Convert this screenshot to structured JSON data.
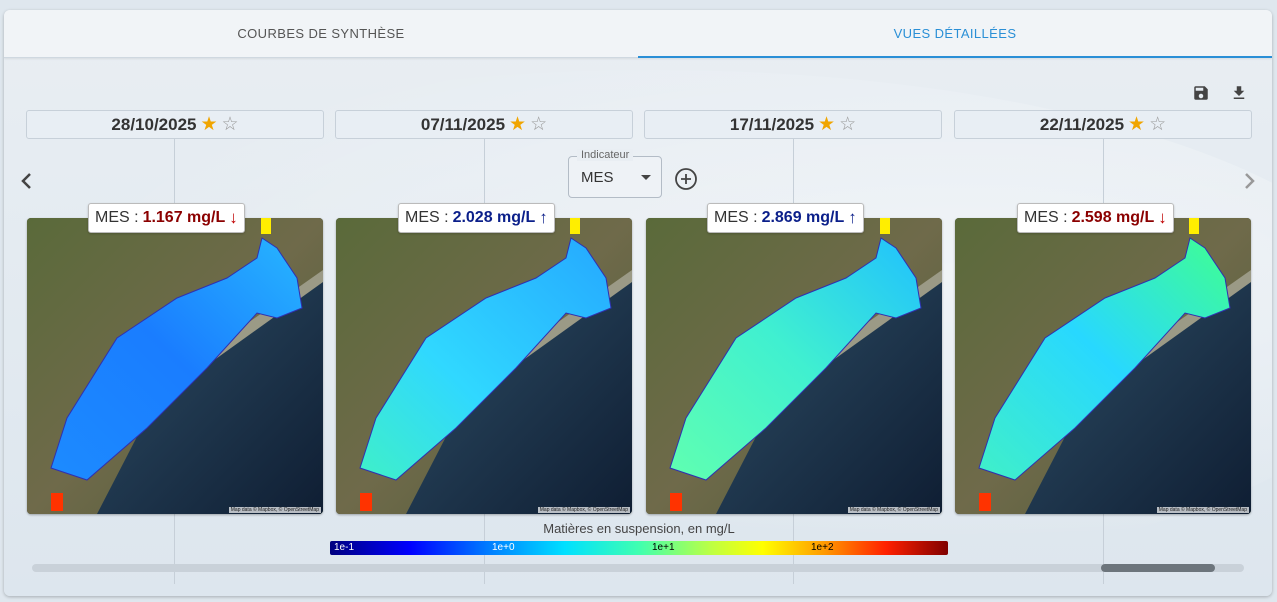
{
  "tabs": [
    {
      "label": "COURBES DE SYNTHÈSE",
      "active": false
    },
    {
      "label": "VUES DÉTAILLÉES",
      "active": true
    }
  ],
  "toolbar": {
    "save_icon": "save-icon",
    "download_icon": "download-icon"
  },
  "indicator": {
    "legend": "Indicateur",
    "value": "MES"
  },
  "views": [
    {
      "date": "28/10/2025",
      "label": "MES :",
      "value": "1.167 mg/L",
      "trend": "down",
      "arrow": "↓",
      "star_filled": "★",
      "star_empty": "☆"
    },
    {
      "date": "07/11/2025",
      "label": "MES :",
      "value": "2.028 mg/L",
      "trend": "up",
      "arrow": "↑",
      "star_filled": "★",
      "star_empty": "☆"
    },
    {
      "date": "17/11/2025",
      "label": "MES :",
      "value": "2.869 mg/L",
      "trend": "up",
      "arrow": "↑",
      "star_filled": "★",
      "star_empty": "☆"
    },
    {
      "date": "22/11/2025",
      "label": "MES :",
      "value": "2.598 mg/L",
      "trend": "down",
      "arrow": "↓",
      "star_filled": "★",
      "star_empty": "☆"
    }
  ],
  "attribution": "Map data © Mapbox, © OpenStreetMap",
  "legend": {
    "title": "Matières en suspension, en mg/L",
    "ticks": [
      "1e-1",
      "1e+0",
      "1e+1",
      "1e+2"
    ]
  },
  "colors": {
    "accent": "#2a8fd6",
    "up": "#0b1f8a",
    "down": "#8b0000",
    "star": "#f0a500"
  }
}
